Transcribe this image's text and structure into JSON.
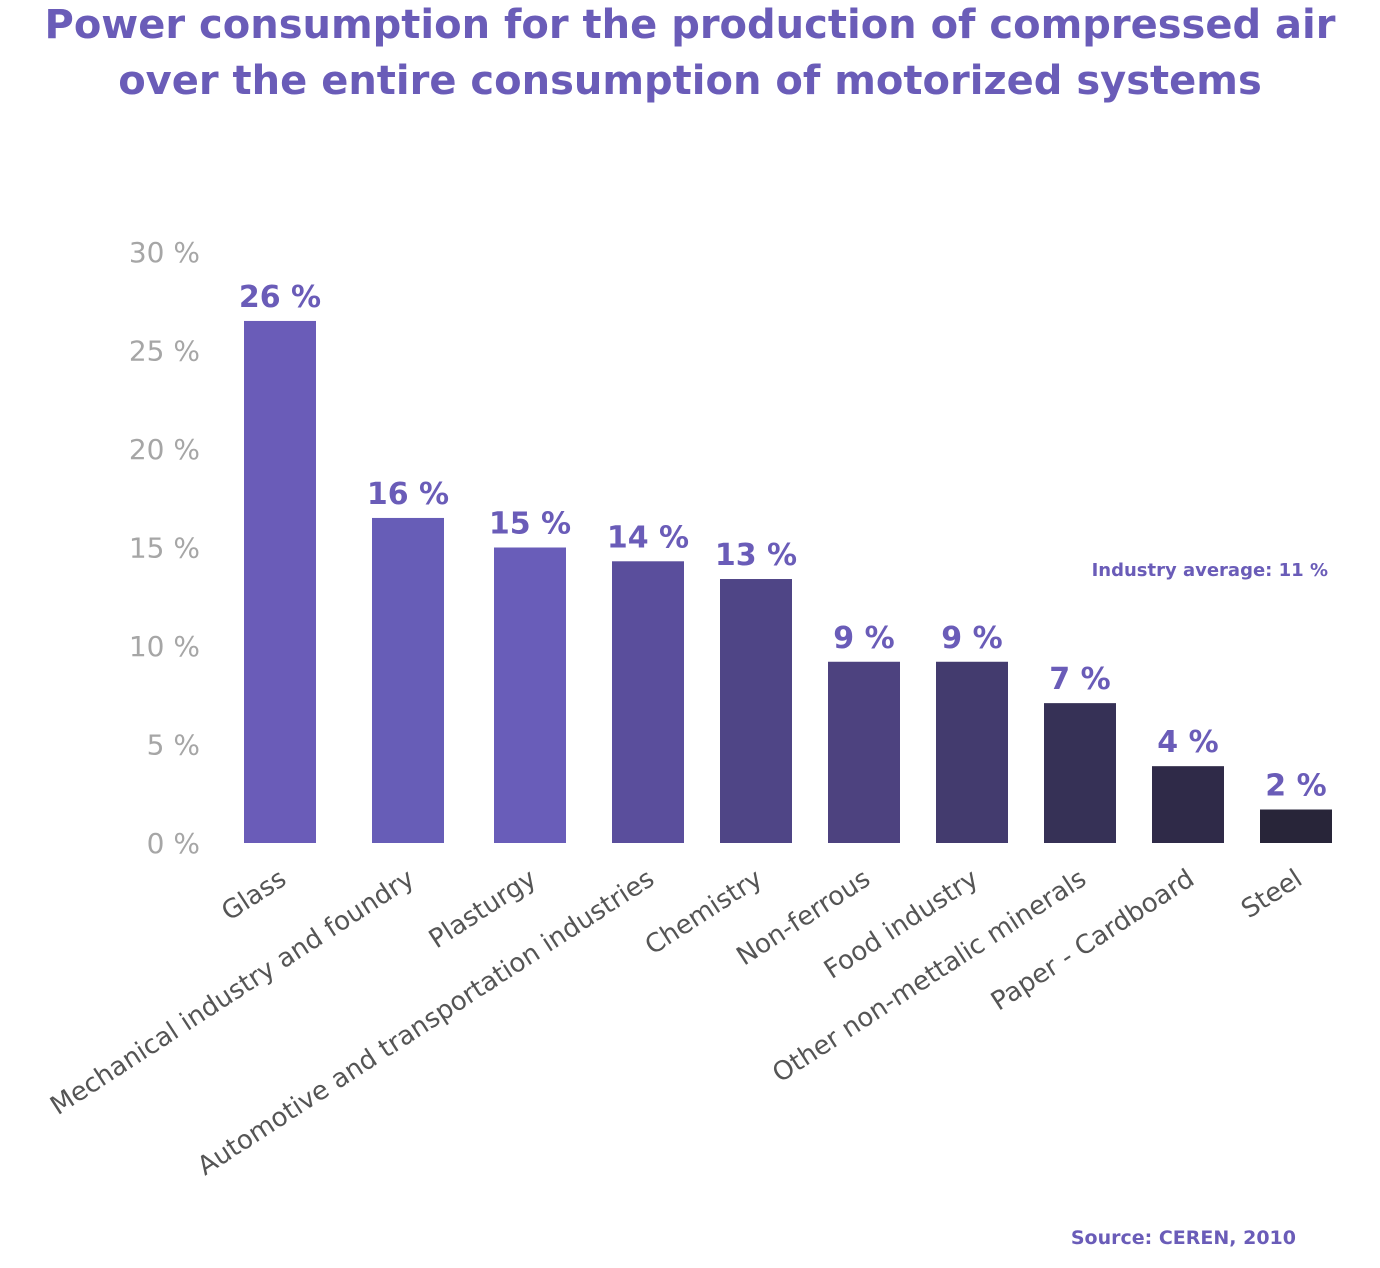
{
  "title": {
    "line1": "Power consumption for the production of compressed air",
    "line2": "over the entire consumption of motorized systems"
  },
  "average_note": "Industry average: 11 %",
  "source": "Source: CEREN, 2010",
  "colors": {
    "title": "#6a5cb8",
    "value_label": "#6a5cb8",
    "tick_label": "#a6a6a6",
    "category_label": "#555555"
  },
  "chart_data": {
    "type": "bar",
    "title": "Power consumption for the production of compressed air over the entire consumption of motorized systems",
    "categories": [
      "Glass",
      "Mechanical industry and foundry",
      "Plasturgy",
      "Automotive and transportation industries",
      "Chemistry",
      "Non-ferrous",
      "Food industry",
      "Other non-mettalic minerals",
      "Paper - Cardboard",
      "Steel"
    ],
    "values": [
      26.5,
      16.5,
      15,
      14.3,
      13.4,
      9.2,
      9.2,
      7.1,
      3.9,
      1.7
    ],
    "value_labels": [
      "26 %",
      "16 %",
      "15 %",
      "14 %",
      "13 %",
      "9 %",
      "9 %",
      "7 %",
      "4 %",
      "2 %"
    ],
    "bar_colors": [
      "#6a5cb8",
      "#675db7",
      "#695db9",
      "#5a4e9c",
      "#4f4586",
      "#4d427f",
      "#433b6e",
      "#363156",
      "#2f2a48",
      "#282539"
    ],
    "yticks": [
      "0 %",
      "5 %",
      "10 %",
      "15 %",
      "20 %",
      "25 %",
      "30 %"
    ],
    "ytick_values": [
      0,
      5,
      10,
      15,
      20,
      25,
      30
    ],
    "ylim": [
      0,
      30
    ],
    "grid": false,
    "legend": "none",
    "annotation": "Industry average: 11 %",
    "xlabel": "",
    "ylabel": ""
  }
}
